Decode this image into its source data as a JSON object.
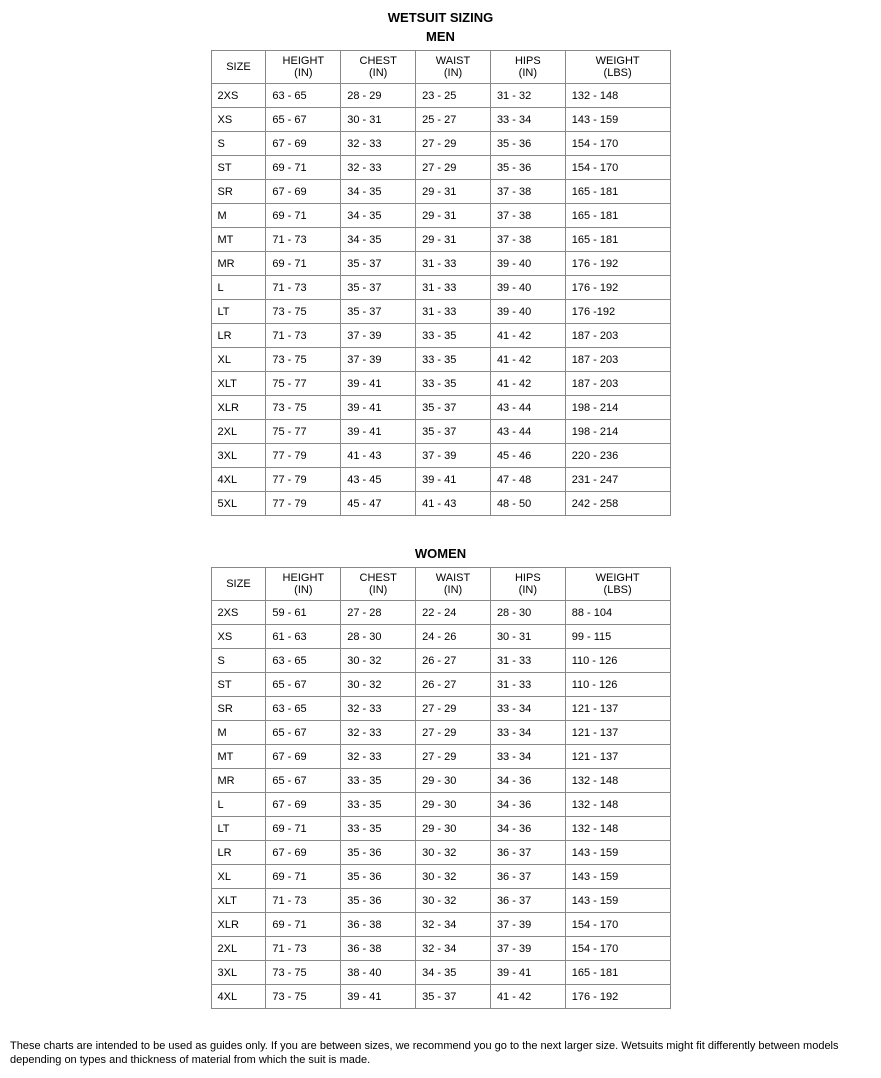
{
  "page_title": "WETSUIT SIZING",
  "disclaimer": "These charts are intended to be used as guides only. If you are between sizes, we recommend you go to the next larger size. Wetsuits might fit differently between models depending on types and thickness of material from which the suit is made.",
  "columns": [
    {
      "key": "size",
      "label_line1": "SIZE",
      "label_line2": ""
    },
    {
      "key": "height",
      "label_line1": "HEIGHT",
      "label_line2": "(IN)"
    },
    {
      "key": "chest",
      "label_line1": "CHEST",
      "label_line2": "(IN)"
    },
    {
      "key": "waist",
      "label_line1": "WAIST",
      "label_line2": "(IN)"
    },
    {
      "key": "hips",
      "label_line1": "HIPS",
      "label_line2": "(IN)"
    },
    {
      "key": "weight",
      "label_line1": "WEIGHT",
      "label_line2": "(LBS)"
    }
  ],
  "sections": [
    {
      "title": "MEN",
      "rows": [
        [
          "2XS",
          "63 - 65",
          "28 - 29",
          "23 - 25",
          "31 - 32",
          "132 - 148"
        ],
        [
          "XS",
          "65 - 67",
          "30 - 31",
          "25 - 27",
          "33 - 34",
          "143 - 159"
        ],
        [
          "S",
          "67 - 69",
          "32 - 33",
          "27 - 29",
          "35 - 36",
          "154 - 170"
        ],
        [
          "ST",
          "69 - 71",
          "32 - 33",
          "27 - 29",
          "35 - 36",
          "154 - 170"
        ],
        [
          "SR",
          "67 - 69",
          "34 - 35",
          "29 - 31",
          "37 - 38",
          "165 - 181"
        ],
        [
          "M",
          "69 - 71",
          "34 - 35",
          "29 - 31",
          "37 - 38",
          "165 - 181"
        ],
        [
          "MT",
          "71 - 73",
          "34 - 35",
          "29 - 31",
          "37 - 38",
          "165 - 181"
        ],
        [
          "MR",
          "69 - 71",
          "35 - 37",
          "31 - 33",
          "39 - 40",
          "176 - 192"
        ],
        [
          "L",
          "71 - 73",
          "35 - 37",
          "31 - 33",
          "39 - 40",
          "176 - 192"
        ],
        [
          "LT",
          "73 - 75",
          "35 - 37",
          "31 - 33",
          "39 - 40",
          "176 -192"
        ],
        [
          "LR",
          "71 - 73",
          "37 - 39",
          "33 - 35",
          "41 - 42",
          "187 - 203"
        ],
        [
          "XL",
          "73 - 75",
          "37 - 39",
          "33 - 35",
          "41 - 42",
          "187 - 203"
        ],
        [
          "XLT",
          "75 - 77",
          "39 - 41",
          "33 - 35",
          "41 - 42",
          "187 - 203"
        ],
        [
          "XLR",
          "73 - 75",
          "39 - 41",
          "35 - 37",
          "43 - 44",
          "198 - 214"
        ],
        [
          "2XL",
          "75 - 77",
          "39 - 41",
          "35 - 37",
          "43 - 44",
          "198 - 214"
        ],
        [
          "3XL",
          "77 - 79",
          "41 - 43",
          "37 - 39",
          "45 - 46",
          "220 - 236"
        ],
        [
          "4XL",
          "77 - 79",
          "43 - 45",
          "39 - 41",
          "47 - 48",
          "231 - 247"
        ],
        [
          "5XL",
          "77 - 79",
          "45 - 47",
          "41 - 43",
          "48 - 50",
          "242 - 258"
        ]
      ]
    },
    {
      "title": "WOMEN",
      "rows": [
        [
          "2XS",
          "59 - 61",
          "27 - 28",
          "22 - 24",
          "28 - 30",
          "88 - 104"
        ],
        [
          "XS",
          "61 - 63",
          "28 - 30",
          "24 - 26",
          "30 - 31",
          "99 - 115"
        ],
        [
          "S",
          "63 - 65",
          "30 - 32",
          "26 - 27",
          "31 - 33",
          "110 - 126"
        ],
        [
          "ST",
          "65 - 67",
          "30 - 32",
          "26 - 27",
          "31 - 33",
          "110 - 126"
        ],
        [
          "SR",
          "63 - 65",
          "32 - 33",
          "27 - 29",
          "33 - 34",
          "121 - 137"
        ],
        [
          "M",
          "65 - 67",
          "32 - 33",
          "27 - 29",
          "33 - 34",
          "121 - 137"
        ],
        [
          "MT",
          "67 - 69",
          "32 - 33",
          "27 - 29",
          "33 - 34",
          "121 - 137"
        ],
        [
          "MR",
          "65 - 67",
          "33 - 35",
          "29 - 30",
          "34 - 36",
          "132 - 148"
        ],
        [
          "L",
          "67 - 69",
          "33 - 35",
          "29 - 30",
          "34 - 36",
          "132 - 148"
        ],
        [
          "LT",
          "69 - 71",
          "33 - 35",
          "29 - 30",
          "34 - 36",
          "132 - 148"
        ],
        [
          "LR",
          "67 - 69",
          "35 - 36",
          "30 - 32",
          "36 - 37",
          "143 - 159"
        ],
        [
          "XL",
          "69 - 71",
          "35 - 36",
          "30 - 32",
          "36 - 37",
          "143 - 159"
        ],
        [
          "XLT",
          "71 - 73",
          "35 - 36",
          "30 - 32",
          "36 - 37",
          "143 - 159"
        ],
        [
          "XLR",
          "69 - 71",
          "36 - 38",
          "32 - 34",
          "37 - 39",
          "154 - 170"
        ],
        [
          "2XL",
          "71 - 73",
          "36 - 38",
          "32 - 34",
          "37 - 39",
          "154 - 170"
        ],
        [
          "3XL",
          "73 - 75",
          "38 - 40",
          "34 - 35",
          "39 - 41",
          "165 - 181"
        ],
        [
          "4XL",
          "73 - 75",
          "39 - 41",
          "35 - 37",
          "41 - 42",
          "176 - 192"
        ]
      ]
    }
  ]
}
